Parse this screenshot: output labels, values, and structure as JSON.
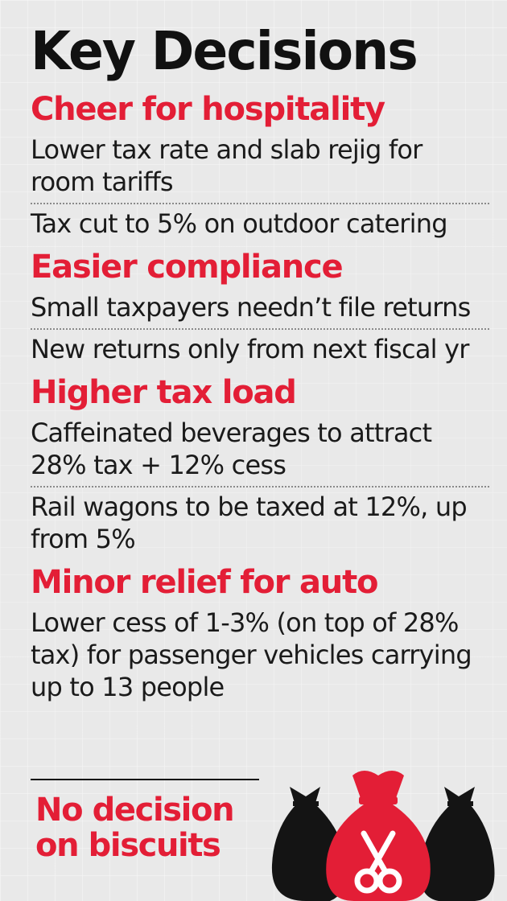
{
  "title": "Key Decisions",
  "sections": [
    {
      "heading": "Cheer for hospitality",
      "items": [
        "Lower tax rate and slab rejig for room tariffs",
        "Tax cut to 5% on outdoor catering"
      ]
    },
    {
      "heading": "Easier compliance",
      "items": [
        "Small taxpayers needn’t file returns",
        "New returns only from next fiscal yr"
      ]
    },
    {
      "heading": "Higher tax load",
      "items": [
        "Caffeinated beverages to attract 28% tax + 12% cess",
        "Rail wagons to be taxed at 12%, up from 5%"
      ]
    },
    {
      "heading": "Minor relief for auto",
      "items": [
        "Lower cess of 1-3% (on top of 28% tax) for passenger vehicles carrying up to 13 people"
      ]
    }
  ],
  "footer": {
    "line1": "No decision",
    "line2": "on biscuits"
  },
  "colors": {
    "accent": "#e31e36",
    "text": "#111111",
    "background": "#e9e9e9"
  },
  "icons": [
    "money-bag-icon",
    "scissors-icon"
  ]
}
